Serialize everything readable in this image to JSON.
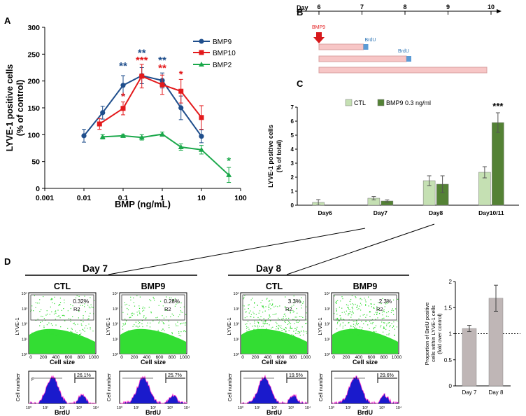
{
  "panels": {
    "A": "A",
    "B": "B",
    "C": "C",
    "D": "D"
  },
  "colors": {
    "bmp9": "#1f4e8c",
    "bmp10": "#e31a1c",
    "bmp2": "#1aa84a",
    "ctl_bar": "#c5e0b3",
    "bmp9_bar": "#548235",
    "flow_green": "#33dd33",
    "hist_blue": "#1a1acc",
    "hist_pink": "#ff33cc",
    "timeline_bar": "#f7c6c6",
    "brdu_block": "#5b9bd5",
    "grey_bar": "#bfb6b6"
  },
  "chart_data": [
    {
      "id": "A",
      "type": "line",
      "xscale": "log",
      "xlabel": "BMP (ng/mL)",
      "ylabel_lines": [
        "LYVE-1 positive cells",
        "(% of control)"
      ],
      "ylim": [
        0,
        300
      ],
      "yticks": [
        0,
        50,
        100,
        150,
        200,
        250,
        300
      ],
      "xticks": [
        0.001,
        0.01,
        0.1,
        1,
        10,
        100
      ],
      "xtick_labels": [
        "0.001",
        "0.01",
        "0.1",
        "1",
        "10",
        "100"
      ],
      "series": [
        {
          "name": "BMP9",
          "color_key": "bmp9",
          "marker": "circle",
          "x": [
            0.01,
            0.03,
            0.1,
            0.3,
            1,
            3,
            10
          ],
          "y": [
            98,
            141,
            192,
            210,
            201,
            150,
            97
          ],
          "err": [
            12,
            12,
            18,
            15,
            14,
            22,
            12
          ]
        },
        {
          "name": "BMP10",
          "color_key": "bmp10",
          "marker": "square",
          "x": [
            0.025,
            0.1,
            0.3,
            1,
            3,
            10
          ],
          "y": [
            120,
            149,
            209,
            193,
            181,
            132
          ],
          "err": [
            10,
            12,
            22,
            18,
            22,
            22
          ]
        },
        {
          "name": "BMP2",
          "color_key": "bmp2",
          "marker": "triangle",
          "x": [
            0.03,
            0.1,
            0.3,
            1,
            3,
            10,
            50
          ],
          "y": [
            96,
            98,
            95,
            101,
            77,
            72,
            25
          ],
          "err": [
            4,
            3,
            5,
            4,
            6,
            8,
            14
          ]
        }
      ],
      "annotations": [
        {
          "text": "**",
          "x": 0.1,
          "y": 222,
          "color_key": "bmp9"
        },
        {
          "text": "*",
          "x": 0.1,
          "y": 165,
          "color_key": "bmp10"
        },
        {
          "text": "**",
          "x": 0.3,
          "y": 246,
          "color_key": "bmp9"
        },
        {
          "text": "***",
          "x": 0.3,
          "y": 232,
          "color_key": "bmp10"
        },
        {
          "text": "**",
          "x": 1,
          "y": 232,
          "color_key": "bmp9"
        },
        {
          "text": "**",
          "x": 1,
          "y": 218,
          "color_key": "bmp10"
        },
        {
          "text": "*",
          "x": 3,
          "y": 206,
          "color_key": "bmp10"
        },
        {
          "text": "*",
          "x": 50,
          "y": 45,
          "color_key": "bmp2"
        }
      ]
    },
    {
      "id": "C",
      "type": "bar",
      "ylabel_lines": [
        "LYVE-1 positive cells",
        "(% of total)"
      ],
      "ylim": [
        0,
        7
      ],
      "yticks": [
        0,
        1,
        2,
        3,
        4,
        5,
        6,
        7
      ],
      "categories": [
        "Day6",
        "Day7",
        "Day8",
        "Day10/11"
      ],
      "series": [
        {
          "name": "CTL",
          "color_key": "ctl_bar",
          "values": [
            0.2,
            0.5,
            1.75,
            2.35
          ],
          "err": [
            0.2,
            0.12,
            0.35,
            0.4
          ]
        },
        {
          "name": "BMP9 0.3 ng/ml",
          "color_key": "bmp9_bar",
          "values": [
            null,
            0.3,
            1.5,
            5.9
          ],
          "err": [
            null,
            0.08,
            0.6,
            0.7
          ]
        }
      ],
      "annotation": "***"
    },
    {
      "id": "D-bar",
      "type": "bar",
      "ylabel_lines": [
        "Proportion of BrdU positive",
        "cells within LYVE-1 cells",
        "(fold over control)"
      ],
      "ylim": [
        0,
        2
      ],
      "yticks": [
        0,
        0.5,
        1,
        1.5,
        2
      ],
      "ytick_labels": [
        "0",
        "0.5",
        "1",
        "1.5",
        "2"
      ],
      "categories": [
        "Day 7",
        "Day 8"
      ],
      "values": [
        1.1,
        1.68
      ],
      "err": [
        0.06,
        0.25
      ],
      "reference_line": 1
    }
  ],
  "timeline": {
    "label": "Day",
    "ticks": [
      "6",
      "7",
      "8",
      "9",
      "10"
    ],
    "treatment": "BMP9",
    "brdu1": "BrdU",
    "brdu2": "BrdU"
  },
  "flow": {
    "day7": "Day 7",
    "day8": "Day 8",
    "plots": [
      {
        "title": "CTL",
        "pct": "0.32%",
        "hist_pct": "26.1%"
      },
      {
        "title": "BMP9",
        "pct": "0.28%",
        "hist_pct": "25.7%"
      },
      {
        "title": "CTL",
        "pct": "3.3%",
        "hist_pct": "19.5%"
      },
      {
        "title": "BMP9",
        "pct": "2.3%",
        "hist_pct": "29.6%"
      }
    ],
    "gate": "R2",
    "gate_short": "F",
    "scatter_ylabel": "LYVE-1",
    "scatter_xlabel": "Cell size",
    "scatter_xticks": [
      "0",
      "200",
      "400",
      "600",
      "800",
      "1000"
    ],
    "scatter_yticks": [
      "10⁰",
      "10¹",
      "10²",
      "10³",
      "10⁴"
    ],
    "hist_ylabel": "Cell number",
    "hist_xlabel": "BrdU",
    "hist_xticks": [
      "10⁰",
      "10¹",
      "10²",
      "10³",
      "10⁴"
    ]
  }
}
